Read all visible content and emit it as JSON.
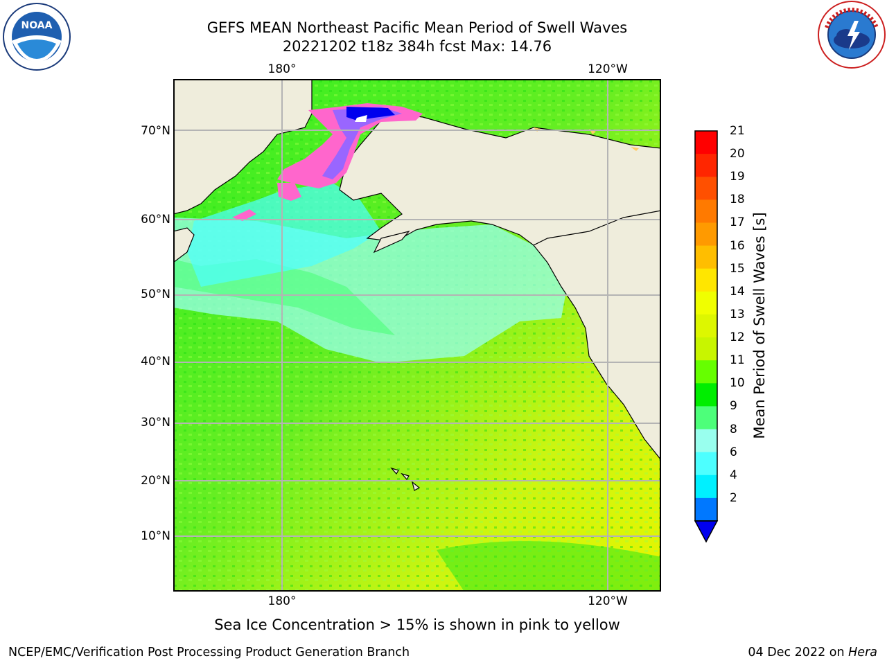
{
  "header": {
    "title_line1": "GEFS MEAN Northeast Pacific Mean Period of Swell Waves",
    "title_line2": "20221202 t18z 384h fcst   Max: 14.76"
  },
  "map": {
    "lon_labels_top": [
      "180°",
      "120°W"
    ],
    "lon_labels_bottom": [
      "180°",
      "120°W"
    ],
    "lat_labels": [
      "70°N",
      "60°N",
      "50°N",
      "40°N",
      "30°N",
      "20°N",
      "10°N"
    ],
    "land_color": "#efeddc",
    "ice_colors": [
      "#ff66cc",
      "#ff99cc",
      "#ffcc66",
      "#ffff66"
    ]
  },
  "colorbar": {
    "label": "Mean Period of Swell Waves [s]",
    "ticks": [
      "21",
      "20",
      "19",
      "18",
      "17",
      "16",
      "15",
      "14",
      "13",
      "12",
      "11",
      "10",
      "9",
      "8",
      "6",
      "4",
      "2"
    ],
    "colors_top_to_bottom": [
      "#ff0000",
      "#ff2600",
      "#ff5000",
      "#ff7a00",
      "#ff9a00",
      "#ffbe00",
      "#ffe600",
      "#f0ff00",
      "#ddf700",
      "#c8f500",
      "#66ff00",
      "#00ee00",
      "#4dff7a",
      "#99ffee",
      "#4dffff",
      "#00f0ff",
      "#0078ff"
    ],
    "extend_color": "#0000ee"
  },
  "footer": {
    "note": "Sea Ice Concentration > 15% is shown in pink to yellow",
    "left": "NCEP/EMC/Verification Post Processing Product Generation Branch",
    "right_date": "04 Dec 2022 on",
    "right_machine": "Hera"
  },
  "logos": {
    "noaa_text": "NOAA",
    "noaa_ring": "NATIONAL OCEANIC AND ATMOSPHERIC ADMINISTRATION · U.S. DEPARTMENT OF COMMERCE",
    "nws_ring": "NATIONAL WEATHER SERVICE"
  }
}
